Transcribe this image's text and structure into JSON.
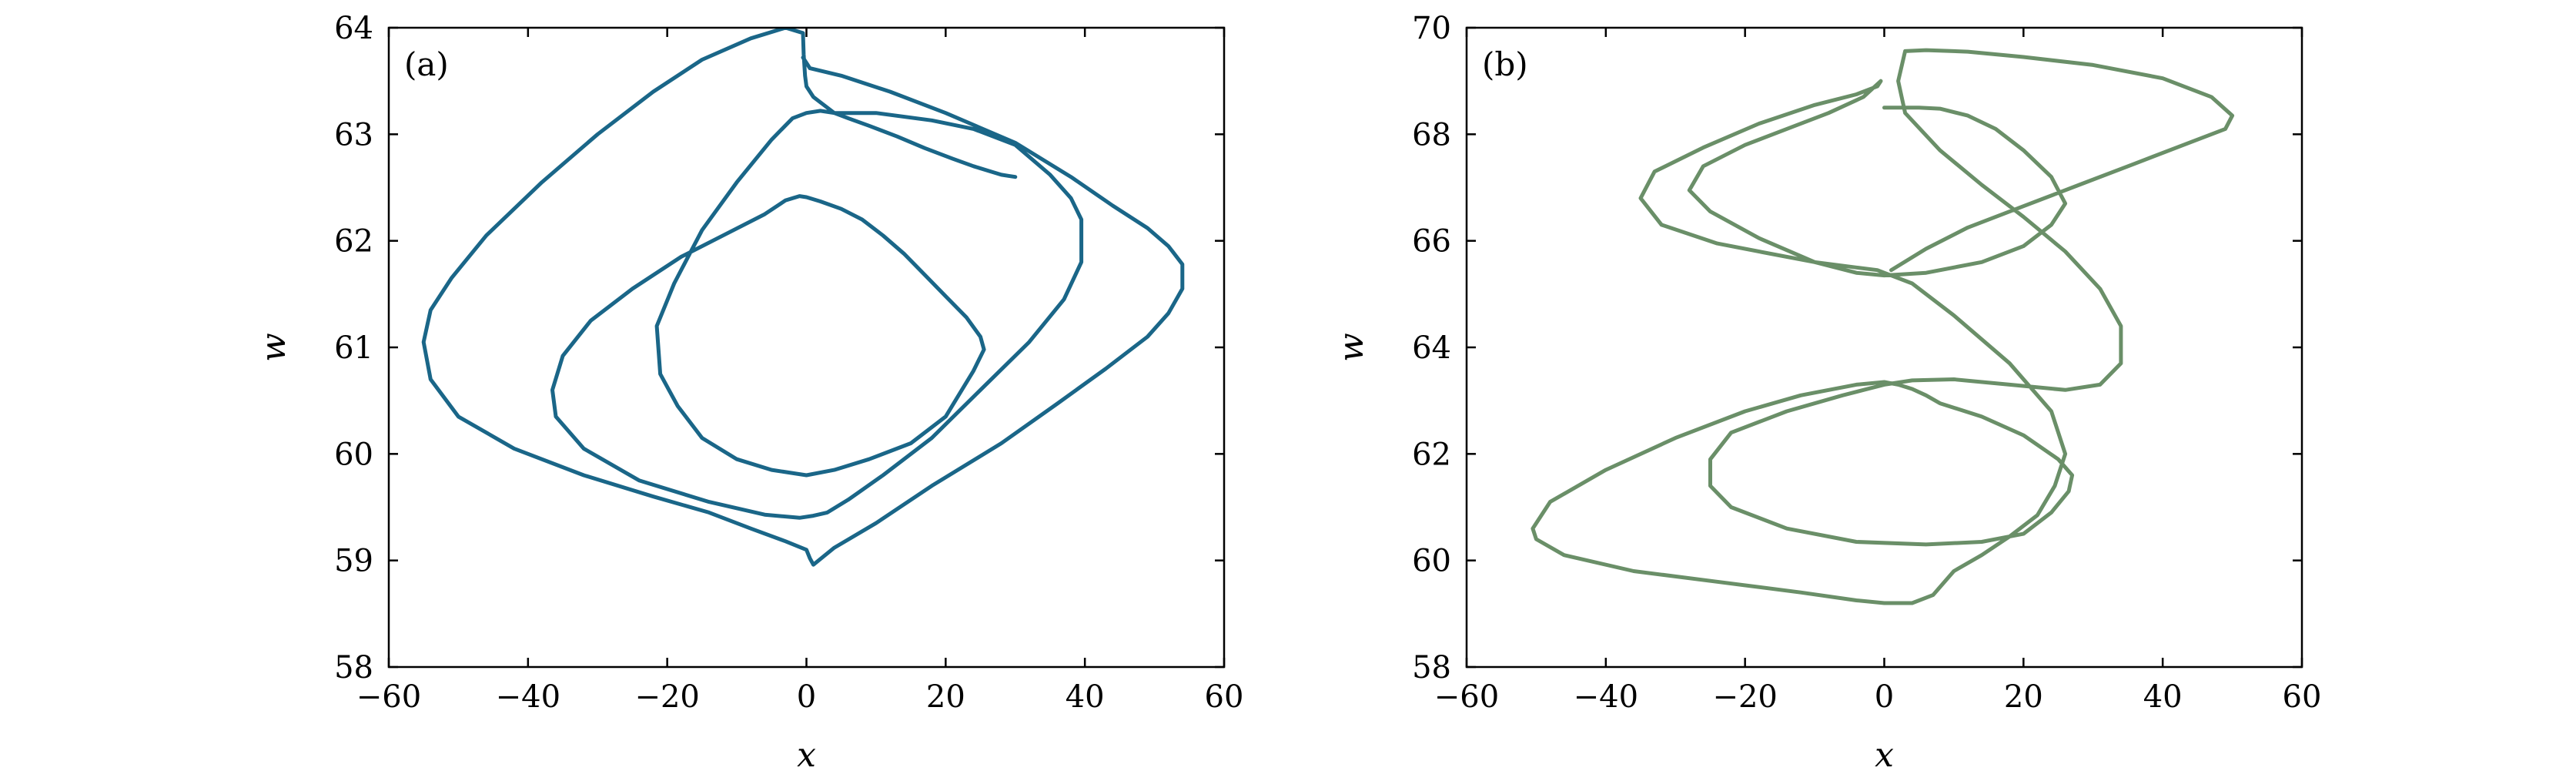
{
  "chart_data": [
    {
      "type": "line",
      "panel_label": "(a)",
      "xlabel": "x",
      "ylabel": "w",
      "xlim": [
        -60,
        60
      ],
      "ylim": [
        58,
        64
      ],
      "xticks": [
        -60,
        -40,
        -20,
        0,
        20,
        40,
        60
      ],
      "xtick_labels": [
        "−60",
        "−40",
        "−20",
        "0",
        "20",
        "40",
        "60"
      ],
      "yticks": [
        58,
        59,
        60,
        61,
        62,
        63,
        64
      ],
      "ytick_labels": [
        "58",
        "59",
        "60",
        "61",
        "62",
        "63",
        "64"
      ],
      "grid": false,
      "legend": "none",
      "series": [
        {
          "color": "#1a6688",
          "x": [
            -0.5,
            0.5,
            5,
            12,
            20,
            30,
            38,
            44,
            49,
            52,
            54,
            54,
            52,
            49,
            43,
            36,
            28,
            18,
            10,
            4,
            1,
            0.5,
            0,
            -3,
            -8,
            -14,
            -22,
            -32,
            -42,
            -50,
            -54,
            -55,
            -54,
            -51,
            -46,
            -38,
            -30,
            -22,
            -15,
            -8,
            -3,
            -0.5,
            -0.4,
            -0.2,
            0,
            1,
            4,
            10,
            18,
            24,
            30,
            35,
            38,
            39.5,
            39.5,
            37,
            32,
            25,
            18,
            11,
            6,
            3,
            1,
            -1,
            -6,
            -14,
            -24,
            -32,
            -36,
            -36.5,
            -35,
            -31,
            -25,
            -18,
            -12,
            -6,
            -3,
            -1,
            0,
            2,
            5,
            8,
            11,
            14,
            17,
            20,
            23,
            25,
            25.5,
            24,
            20,
            15,
            9,
            4,
            0,
            -5,
            -10,
            -15,
            -18.5,
            -21,
            -21.5,
            -19,
            -15,
            -10,
            -5,
            -2,
            0,
            2,
            4,
            6,
            9,
            13,
            17,
            21,
            24,
            26,
            27,
            28,
            29,
            30
          ],
          "y": [
            63.72,
            63.62,
            63.55,
            63.4,
            63.2,
            62.92,
            62.6,
            62.33,
            62.12,
            61.95,
            61.78,
            61.55,
            61.32,
            61.1,
            60.8,
            60.47,
            60.1,
            59.7,
            59.35,
            59.12,
            58.96,
            59.02,
            59.1,
            59.18,
            59.3,
            59.45,
            59.6,
            59.8,
            60.05,
            60.35,
            60.7,
            61.05,
            61.35,
            61.65,
            62.05,
            62.55,
            63.0,
            63.4,
            63.7,
            63.9,
            64.0,
            63.95,
            63.75,
            63.55,
            63.45,
            63.35,
            63.2,
            63.2,
            63.13,
            63.05,
            62.9,
            62.62,
            62.4,
            62.2,
            61.8,
            61.45,
            61.05,
            60.6,
            60.15,
            59.8,
            59.57,
            59.45,
            59.42,
            59.4,
            59.43,
            59.55,
            59.75,
            60.05,
            60.35,
            60.6,
            60.92,
            61.25,
            61.55,
            61.85,
            62.05,
            62.25,
            62.38,
            62.42,
            62.41,
            62.37,
            62.3,
            62.2,
            62.05,
            61.88,
            61.68,
            61.48,
            61.28,
            61.1,
            60.98,
            60.78,
            60.35,
            60.1,
            59.95,
            59.85,
            59.8,
            59.85,
            59.95,
            60.15,
            60.45,
            60.75,
            61.2,
            61.6,
            62.1,
            62.55,
            62.95,
            63.15,
            63.2,
            63.22,
            63.2,
            63.15,
            63.08,
            62.98,
            62.87,
            62.77,
            62.7,
            62.66,
            62.64,
            62.62,
            62.61,
            62.6
          ],
          "note_x": [],
          "note_y": []
        }
      ]
    },
    {
      "type": "line",
      "panel_label": "(b)",
      "xlabel": "x",
      "ylabel": "w",
      "xlim": [
        -60,
        60
      ],
      "ylim": [
        58,
        70
      ],
      "xticks": [
        -60,
        -40,
        -20,
        0,
        20,
        40,
        60
      ],
      "xtick_labels": [
        "−60",
        "−40",
        "−20",
        "0",
        "20",
        "40",
        "60"
      ],
      "yticks": [
        58,
        60,
        62,
        64,
        66,
        68,
        70
      ],
      "ytick_labels": [
        "58",
        "60",
        "62",
        "64",
        "66",
        "68",
        "70"
      ],
      "grid": false,
      "legend": "none",
      "series": [
        {
          "color": "#6a8f68",
          "x": [
            1,
            6,
            12,
            20,
            28,
            36,
            44,
            49,
            50,
            47,
            40,
            30,
            20,
            12,
            6,
            3,
            2,
            3,
            8,
            14,
            20,
            26,
            31,
            34,
            34,
            31,
            26,
            18,
            10,
            4,
            0,
            -6,
            -14,
            -22,
            -25,
            -25,
            -22,
            -14,
            -4,
            6,
            14,
            20,
            24,
            26.5,
            27,
            25,
            20,
            14,
            8,
            6,
            4,
            2,
            0,
            -4,
            -12,
            -20,
            -30,
            -40,
            -48,
            -50.5,
            -50,
            -46,
            -36,
            -24,
            -12,
            -4,
            0,
            4,
            7,
            10,
            14,
            18,
            22,
            24.5,
            26,
            24,
            18,
            10,
            4,
            0,
            -1,
            -4,
            -10,
            -16,
            -24,
            -32,
            -35,
            -33,
            -26,
            -18,
            -10,
            -4,
            -1,
            -0.5,
            -3,
            -8,
            -14,
            -20,
            -26,
            -28,
            -25,
            -18,
            -10,
            -4,
            0,
            6,
            14,
            20,
            24,
            26,
            24,
            20,
            16,
            12,
            8,
            5,
            2,
            0
          ],
          "y": [
            65.45,
            65.85,
            66.25,
            66.65,
            67.05,
            67.45,
            67.85,
            68.1,
            68.35,
            68.7,
            69.05,
            69.3,
            69.45,
            69.55,
            69.58,
            69.56,
            69.0,
            68.4,
            67.7,
            67.05,
            66.45,
            65.8,
            65.1,
            64.4,
            63.7,
            63.3,
            63.2,
            63.3,
            63.4,
            63.38,
            63.3,
            63.1,
            62.8,
            62.4,
            61.9,
            61.4,
            61.0,
            60.6,
            60.35,
            60.3,
            60.35,
            60.5,
            60.9,
            61.3,
            61.6,
            61.9,
            62.35,
            62.7,
            62.95,
            63.1,
            63.22,
            63.3,
            63.35,
            63.3,
            63.1,
            62.8,
            62.3,
            61.7,
            61.1,
            60.6,
            60.4,
            60.1,
            59.8,
            59.6,
            59.4,
            59.25,
            59.2,
            59.2,
            59.35,
            59.8,
            60.1,
            60.45,
            60.85,
            61.4,
            62.0,
            62.8,
            63.7,
            64.6,
            65.2,
            65.4,
            65.45,
            65.5,
            65.6,
            65.75,
            65.95,
            66.3,
            66.8,
            67.3,
            67.75,
            68.2,
            68.55,
            68.75,
            68.9,
            69.0,
            68.7,
            68.4,
            68.1,
            67.8,
            67.4,
            66.95,
            66.55,
            66.05,
            65.6,
            65.4,
            65.35,
            65.4,
            65.6,
            65.9,
            66.3,
            66.7,
            67.2,
            67.7,
            68.1,
            68.35,
            68.48,
            68.5,
            68.5,
            68.5
          ],
          "note_x": [],
          "note_y": []
        }
      ]
    }
  ]
}
